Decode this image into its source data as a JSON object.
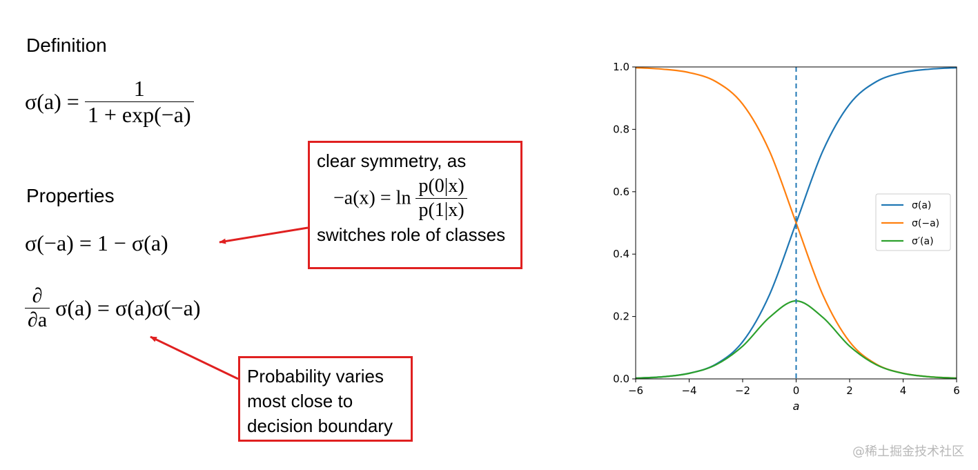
{
  "left": {
    "definition_heading": "Definition",
    "definition_formula": {
      "lhs": "σ(a) =",
      "numerator": "1",
      "denominator": "1 + exp(−a)"
    },
    "properties_heading": "Properties",
    "property1": "σ(−a) = 1 − σ(a)",
    "property2": {
      "d_num": "∂",
      "d_den": "∂a",
      "rest": "σ(a) = σ(a)σ(−a)"
    }
  },
  "symmetry_box": {
    "line1": "clear symmetry, as",
    "formula_lhs": "−a(x) = ln",
    "formula_num": "p(0|x)",
    "formula_den": "p(1|x)",
    "line3": "switches role of classes"
  },
  "probability_box": {
    "line1": "Probability varies",
    "line2": "most close to",
    "line3": "decision boundary"
  },
  "watermark": "@稀土掘金技术社区",
  "colors": {
    "annotation_red": "#e02020",
    "sigma": "#1f77b4",
    "sigma_neg": "#ff7f0e",
    "sigma_prime": "#2ca02c"
  },
  "chart_data": {
    "type": "line",
    "xlabel": "a",
    "ylabel": "",
    "xlim": [
      -6,
      6
    ],
    "ylim": [
      0,
      1
    ],
    "xticks": [
      "−6",
      "−4",
      "−2",
      "0",
      "2",
      "4",
      "6"
    ],
    "xtick_values": [
      -6,
      -4,
      -2,
      0,
      2,
      4,
      6
    ],
    "yticks": [
      "0.0",
      "0.2",
      "0.4",
      "0.6",
      "0.8",
      "1.0"
    ],
    "ytick_values": [
      0,
      0.2,
      0.4,
      0.6,
      0.8,
      1.0
    ],
    "x": [
      -6,
      -5,
      -4,
      -3,
      -2,
      -1,
      0,
      1,
      2,
      3,
      4,
      5,
      6
    ],
    "series": [
      {
        "name": "σ(a)",
        "color": "#1f77b4",
        "values": [
          0.0025,
          0.0067,
          0.018,
          0.047,
          0.119,
          0.269,
          0.5,
          0.731,
          0.881,
          0.953,
          0.982,
          0.993,
          0.9975
        ]
      },
      {
        "name": "σ(−a)",
        "color": "#ff7f0e",
        "values": [
          0.9975,
          0.993,
          0.982,
          0.953,
          0.881,
          0.731,
          0.5,
          0.269,
          0.119,
          0.047,
          0.018,
          0.0067,
          0.0025
        ]
      },
      {
        "name": "σ′(a)",
        "color": "#2ca02c",
        "values": [
          0.0025,
          0.0066,
          0.0177,
          0.0452,
          0.105,
          0.197,
          0.25,
          0.197,
          0.105,
          0.0452,
          0.0177,
          0.0066,
          0.0025
        ]
      }
    ],
    "vline_x": 0,
    "vline_style": "dashed",
    "grid": false,
    "legend_position": "right"
  }
}
